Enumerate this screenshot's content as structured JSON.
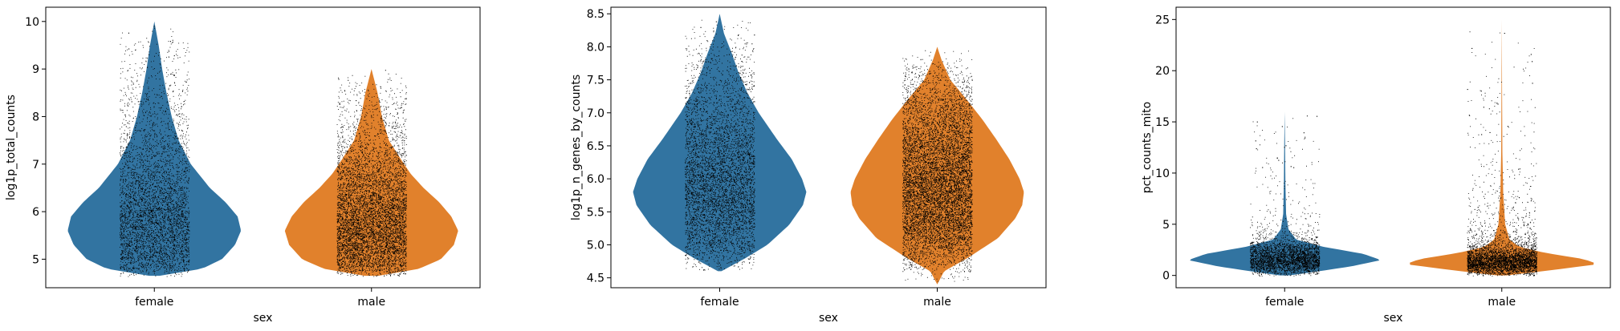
{
  "chart_data": [
    {
      "type": "violin",
      "xlabel": "sex",
      "ylabel": "log1p_total_counts",
      "ylim": [
        4.4,
        10.3
      ],
      "yticks": [
        5,
        6,
        7,
        8,
        9,
        10
      ],
      "ytick_labels": [
        "5",
        "6",
        "7",
        "8",
        "9",
        "10"
      ],
      "categories": [
        "female",
        "male"
      ],
      "colors": [
        "#3274a1",
        "#e1812c"
      ],
      "grid": false,
      "violins": [
        {
          "category": "female",
          "min": 4.65,
          "max": 10.0,
          "profile": [
            [
              4.65,
              0.06
            ],
            [
              4.8,
              0.55
            ],
            [
              5.0,
              0.78
            ],
            [
              5.3,
              0.93
            ],
            [
              5.6,
              1.0
            ],
            [
              5.9,
              0.96
            ],
            [
              6.2,
              0.82
            ],
            [
              6.5,
              0.64
            ],
            [
              7.0,
              0.42
            ],
            [
              7.5,
              0.28
            ],
            [
              8.0,
              0.2
            ],
            [
              8.5,
              0.14
            ],
            [
              9.0,
              0.09
            ],
            [
              9.5,
              0.05
            ],
            [
              10.0,
              0.0
            ]
          ]
        },
        {
          "category": "male",
          "min": 4.65,
          "max": 9.0,
          "profile": [
            [
              4.65,
              0.08
            ],
            [
              4.8,
              0.55
            ],
            [
              5.0,
              0.8
            ],
            [
              5.3,
              0.95
            ],
            [
              5.6,
              1.0
            ],
            [
              5.9,
              0.92
            ],
            [
              6.2,
              0.78
            ],
            [
              6.5,
              0.6
            ],
            [
              6.8,
              0.45
            ],
            [
              7.1,
              0.34
            ],
            [
              7.5,
              0.2
            ],
            [
              8.0,
              0.12
            ],
            [
              8.5,
              0.07
            ],
            [
              9.0,
              0.0
            ]
          ]
        }
      ]
    },
    {
      "type": "violin",
      "xlabel": "sex",
      "ylabel": "log1p_n_genes_by_counts",
      "ylim": [
        4.35,
        8.6
      ],
      "yticks": [
        4.5,
        5.0,
        5.5,
        6.0,
        6.5,
        7.0,
        7.5,
        8.0,
        8.5
      ],
      "ytick_labels": [
        "4.5",
        "5.0",
        "5.5",
        "6.0",
        "6.5",
        "7.0",
        "7.5",
        "8.0",
        "8.5"
      ],
      "categories": [
        "female",
        "male"
      ],
      "colors": [
        "#3274a1",
        "#e1812c"
      ],
      "grid": false,
      "violins": [
        {
          "category": "female",
          "min": 4.6,
          "max": 8.5,
          "profile": [
            [
              4.6,
              0.02
            ],
            [
              4.8,
              0.3
            ],
            [
              5.0,
              0.55
            ],
            [
              5.3,
              0.8
            ],
            [
              5.6,
              0.96
            ],
            [
              5.8,
              1.0
            ],
            [
              6.0,
              0.95
            ],
            [
              6.3,
              0.83
            ],
            [
              6.6,
              0.66
            ],
            [
              7.0,
              0.45
            ],
            [
              7.3,
              0.32
            ],
            [
              7.6,
              0.22
            ],
            [
              7.9,
              0.14
            ],
            [
              8.2,
              0.05
            ],
            [
              8.5,
              0.0
            ]
          ]
        },
        {
          "category": "male",
          "min": 4.4,
          "max": 8.0,
          "profile": [
            [
              4.4,
              0.0
            ],
            [
              4.6,
              0.08
            ],
            [
              4.8,
              0.35
            ],
            [
              5.1,
              0.7
            ],
            [
              5.4,
              0.9
            ],
            [
              5.6,
              0.98
            ],
            [
              5.8,
              1.0
            ],
            [
              6.0,
              0.95
            ],
            [
              6.3,
              0.83
            ],
            [
              6.6,
              0.68
            ],
            [
              6.9,
              0.52
            ],
            [
              7.2,
              0.34
            ],
            [
              7.5,
              0.15
            ],
            [
              7.8,
              0.05
            ],
            [
              8.0,
              0.0
            ]
          ]
        }
      ]
    },
    {
      "type": "violin",
      "xlabel": "sex",
      "ylabel": "pct_counts_mito",
      "ylim": [
        -1.2,
        26.2
      ],
      "yticks": [
        0,
        5,
        10,
        15,
        20,
        25
      ],
      "ytick_labels": [
        "0",
        "5",
        "10",
        "15",
        "20",
        "25"
      ],
      "categories": [
        "female",
        "male"
      ],
      "colors": [
        "#3274a1",
        "#e1812c"
      ],
      "grid": false,
      "violins": [
        {
          "category": "female",
          "min": 0.0,
          "max": 16.0,
          "profile": [
            [
              0.0,
              0.05
            ],
            [
              0.4,
              0.35
            ],
            [
              0.9,
              0.7
            ],
            [
              1.5,
              1.0
            ],
            [
              2.1,
              0.82
            ],
            [
              2.8,
              0.4
            ],
            [
              3.5,
              0.12
            ],
            [
              4.5,
              0.04
            ],
            [
              6.0,
              0.015
            ],
            [
              9.0,
              0.008
            ],
            [
              13.0,
              0.004
            ],
            [
              16.0,
              0.0
            ]
          ]
        },
        {
          "category": "male",
          "min": 0.0,
          "max": 25.0,
          "profile": [
            [
              0.0,
              0.05
            ],
            [
              0.5,
              0.5
            ],
            [
              1.1,
              1.0
            ],
            [
              1.6,
              0.85
            ],
            [
              2.2,
              0.45
            ],
            [
              2.8,
              0.18
            ],
            [
              3.5,
              0.08
            ],
            [
              5.0,
              0.035
            ],
            [
              8.0,
              0.015
            ],
            [
              12.0,
              0.006
            ],
            [
              18.0,
              0.003
            ],
            [
              25.0,
              0.0
            ]
          ]
        }
      ]
    }
  ]
}
